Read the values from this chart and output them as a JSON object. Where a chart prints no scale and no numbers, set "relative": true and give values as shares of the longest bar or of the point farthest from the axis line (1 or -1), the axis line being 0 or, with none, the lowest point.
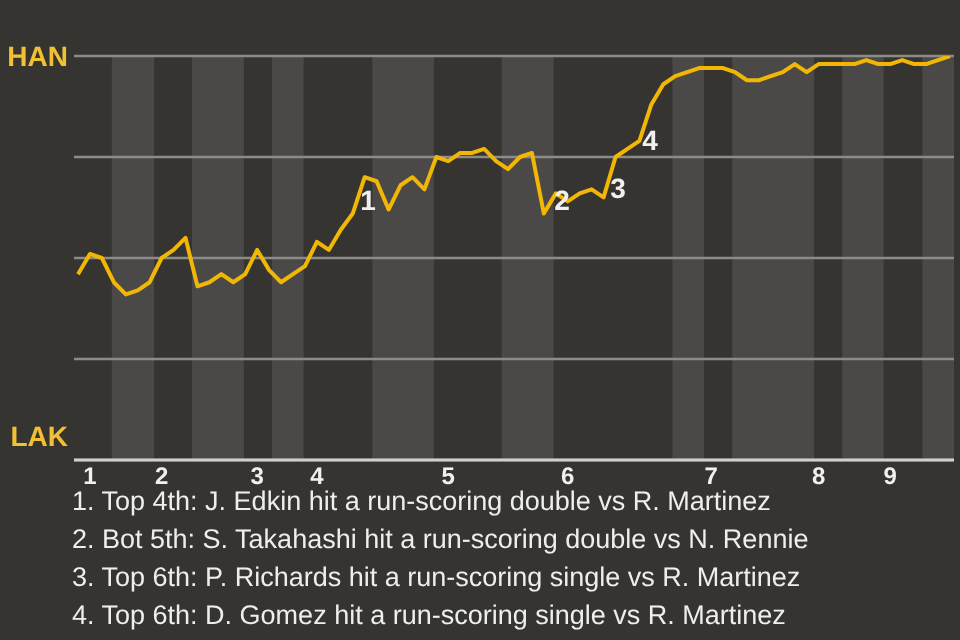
{
  "chart_data": {
    "type": "line",
    "relative": true,
    "categories": [
      null,
      "1",
      null,
      null,
      null,
      null,
      null,
      "2",
      null,
      null,
      null,
      null,
      null,
      null,
      null,
      "3",
      null,
      null,
      null,
      null,
      "4",
      null,
      null,
      null,
      null,
      null,
      null,
      null,
      null,
      null,
      null,
      "5",
      null,
      null,
      null,
      null,
      null,
      null,
      null,
      null,
      null,
      "6",
      null,
      null,
      null,
      null,
      null,
      null,
      null,
      null,
      null,
      null,
      null,
      "7",
      null,
      null,
      null,
      null,
      null,
      null,
      null,
      null,
      "8",
      null,
      null,
      null,
      null,
      null,
      "9",
      null,
      null,
      null,
      null,
      null
    ],
    "values": [
      0.46,
      0.51,
      0.5,
      0.44,
      0.41,
      0.42,
      0.44,
      0.5,
      0.52,
      0.55,
      0.43,
      0.44,
      0.46,
      0.44,
      0.46,
      0.52,
      0.47,
      0.44,
      0.46,
      0.48,
      0.54,
      0.52,
      0.57,
      0.61,
      0.7,
      0.69,
      0.62,
      0.68,
      0.7,
      0.67,
      0.75,
      0.74,
      0.76,
      0.76,
      0.77,
      0.74,
      0.72,
      0.75,
      0.76,
      0.61,
      0.66,
      0.64,
      0.66,
      0.67,
      0.65,
      0.75,
      0.77,
      0.79,
      0.88,
      0.93,
      0.95,
      0.96,
      0.97,
      0.97,
      0.97,
      0.96,
      0.94,
      0.94,
      0.95,
      0.96,
      0.98,
      0.96,
      0.98,
      0.98,
      0.98,
      0.98,
      0.99,
      0.98,
      0.98,
      0.99,
      0.98,
      0.98,
      0.99,
      1.0
    ],
    "color": "#f2b705",
    "marker": "none",
    "line_style": "solid",
    "grid": "y",
    "legend": false,
    "annotations": [
      "HAN",
      "LAK",
      "1",
      "2",
      "3",
      "4",
      "1. Top 4th: J. Edkin hit a run-scoring double vs R. Martinez",
      "2. Bot 5th: S. Takahashi hit a run-scoring double vs N. Rennie",
      "3. Top 6th: P. Richards hit a run-scoring single vs R. Martinez",
      "4. Top 6th: D. Gomez hit a run-scoring single vs R. Martinez"
    ]
  }
}
